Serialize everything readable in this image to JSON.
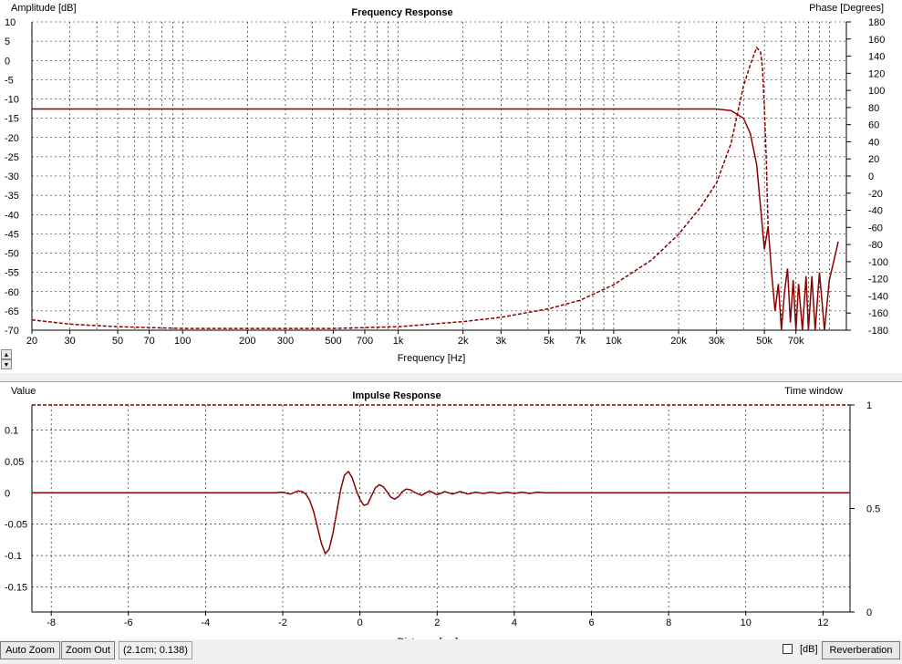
{
  "freq_panel": {
    "title": "Frequency Response",
    "left_axis_label": "Amplitude [dB]",
    "right_axis_label": "Phase [Degrees]",
    "x_axis_label": "Frequency [Hz]"
  },
  "impulse_panel": {
    "title": "Impulse Response",
    "left_axis_label": "Value",
    "right_axis_label": "Time window",
    "x_axis_label": "Distance [cm]"
  },
  "toolbar": {
    "auto_zoom_label": "Auto Zoom",
    "zoom_out_label": "Zoom Out",
    "status_text": "(2.1cm; 0.138)",
    "db_label": "[dB]",
    "reverberation_label": "Reverberation",
    "spin_up": "▲",
    "spin_down": "▼"
  },
  "colors": {
    "trace": "#8b0000",
    "grid": "#000000"
  },
  "chart_data": [
    {
      "type": "line",
      "title": "Frequency Response",
      "xlabel": "Frequency [Hz]",
      "ylabel": "Amplitude [dB]",
      "y2label": "Phase [Degrees]",
      "xscale": "log",
      "xlim": [
        20,
        120000
      ],
      "ylim": [
        -70,
        10
      ],
      "y2lim": [
        -180,
        180
      ],
      "x_ticks": [
        20,
        30,
        50,
        70,
        100,
        200,
        300,
        500,
        700,
        1000,
        2000,
        3000,
        5000,
        7000,
        10000,
        20000,
        30000,
        50000,
        70000
      ],
      "x_tick_labels": [
        "20",
        "30",
        "50",
        "70",
        "100",
        "200",
        "300",
        "500",
        "700",
        "1k",
        "2k",
        "3k",
        "5k",
        "7k",
        "10k",
        "20k",
        "30k",
        "50k",
        "70k"
      ],
      "y_ticks": [
        10,
        5,
        0,
        -5,
        -10,
        -15,
        -20,
        -25,
        -30,
        -35,
        -40,
        -45,
        -50,
        -55,
        -60,
        -65,
        -70
      ],
      "y2_ticks": [
        180,
        160,
        140,
        120,
        100,
        80,
        60,
        40,
        20,
        0,
        -20,
        -40,
        -60,
        -80,
        -100,
        -120,
        -140,
        -160,
        -180
      ],
      "grid": true,
      "series": [
        {
          "style": "solid",
          "axis": "left",
          "x": [
            20,
            1000,
            10000,
            25000,
            30000,
            35000,
            40000,
            43000,
            46000,
            48000,
            50000,
            52000,
            54000,
            56000,
            58000,
            60000,
            62000,
            64000,
            66000,
            68000,
            70000,
            72000,
            75000,
            78000,
            80000,
            83000,
            86000,
            90000,
            95000,
            100000,
            105000,
            110000
          ],
          "y": [
            -12.6,
            -12.6,
            -12.6,
            -12.6,
            -12.6,
            -13,
            -15,
            -19,
            -27,
            -38,
            -49,
            -43,
            -55,
            -65,
            -58,
            -70,
            -60,
            -54,
            -68,
            -57,
            -70,
            -58,
            -70,
            -56,
            -70,
            -56,
            -70,
            -55,
            -70,
            -57,
            -52,
            -47
          ]
        },
        {
          "style": "dashed",
          "axis": "right",
          "x": [
            20,
            30,
            50,
            100,
            200,
            500,
            1000,
            2000,
            3000,
            5000,
            7000,
            10000,
            15000,
            20000,
            25000,
            30000,
            35000,
            40000,
            43000,
            46000,
            48000,
            49000,
            50000,
            51000,
            52000
          ],
          "y": [
            -168,
            -173,
            -176,
            -178,
            -178,
            -178,
            -176,
            -170,
            -165,
            -155,
            -145,
            -127,
            -98,
            -68,
            -38,
            -8,
            38,
            105,
            130,
            150,
            145,
            125,
            80,
            20,
            -60
          ]
        }
      ]
    },
    {
      "type": "line",
      "title": "Impulse Response",
      "xlabel": "Distance [cm]",
      "ylabel": "Value",
      "y2label": "Time window",
      "xlim": [
        -8.5,
        12.7
      ],
      "ylim": [
        -0.19,
        0.14
      ],
      "y2lim": [
        0,
        1
      ],
      "x_ticks": [
        -8,
        -6,
        -4,
        -2,
        0,
        2,
        4,
        6,
        8,
        10,
        12
      ],
      "y_ticks": [
        0.1,
        0.05,
        0,
        -0.05,
        -0.1,
        -0.15
      ],
      "y_tick_labels": [
        "0.1",
        "0.05",
        "0",
        "-0.05",
        "-0.1",
        "-0.15"
      ],
      "y2_ticks": [
        1,
        0.5,
        0
      ],
      "grid": true,
      "series": [
        {
          "style": "solid",
          "axis": "left",
          "x": [
            -8.5,
            -2.2,
            -2.0,
            -1.8,
            -1.6,
            -1.5,
            -1.4,
            -1.3,
            -1.2,
            -1.1,
            -1.0,
            -0.9,
            -0.8,
            -0.7,
            -0.6,
            -0.5,
            -0.4,
            -0.3,
            -0.2,
            -0.1,
            0.0,
            0.1,
            0.2,
            0.3,
            0.4,
            0.5,
            0.6,
            0.7,
            0.8,
            0.9,
            1.0,
            1.1,
            1.2,
            1.3,
            1.4,
            1.6,
            1.8,
            2.0,
            2.2,
            2.4,
            2.6,
            2.8,
            3.0,
            3.2,
            3.4,
            3.6,
            3.8,
            4.0,
            4.2,
            4.4,
            4.6,
            4.8,
            5.0,
            12.7
          ],
          "y": [
            0,
            0,
            0.001,
            -0.002,
            0.003,
            0.002,
            -0.002,
            -0.012,
            -0.03,
            -0.055,
            -0.08,
            -0.097,
            -0.09,
            -0.065,
            -0.03,
            0.005,
            0.028,
            0.034,
            0.024,
            0.005,
            -0.01,
            -0.02,
            -0.018,
            -0.005,
            0.008,
            0.013,
            0.01,
            0.002,
            -0.007,
            -0.01,
            -0.006,
            0.002,
            0.006,
            0.005,
            0.001,
            -0.004,
            0.003,
            -0.003,
            0.002,
            -0.002,
            0.002,
            -0.002,
            0.001,
            -0.001,
            0.001,
            -0.001,
            0.001,
            -0.001,
            0.001,
            -0.001,
            0.001,
            0,
            0,
            0
          ]
        },
        {
          "style": "dashed",
          "axis": "right",
          "x": [
            -8.5,
            12.7
          ],
          "y": [
            1,
            1
          ]
        }
      ]
    }
  ]
}
